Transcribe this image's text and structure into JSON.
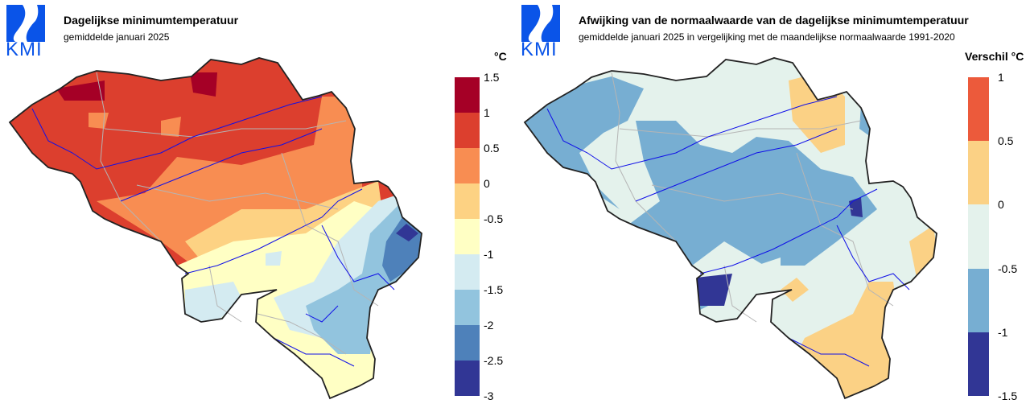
{
  "logo": {
    "text": "KMI",
    "color": "#0a54e8"
  },
  "left_panel": {
    "title": "Dagelijkse minimumtemperatuur",
    "subtitle": "gemiddelde januari 2025",
    "legend": {
      "unit": "°C",
      "breaks": [
        "1.5",
        "1",
        "0.5",
        "0",
        "-0.5",
        "-1",
        "-1.5",
        "-2",
        "-2.5",
        "-3"
      ],
      "colors": [
        "#a50026",
        "#dc3f2e",
        "#f88d52",
        "#fdd283",
        "#ffffc4",
        "#d4ebf1",
        "#92c4de",
        "#4e81ba",
        "#313695"
      ]
    }
  },
  "right_panel": {
    "title": "Afwijking van de normaalwaarde van de dagelijkse minimumtemperatuur",
    "subtitle": "gemiddelde januari 2025 in vergelijking met de maandelijkse normaalwaarde 1991-2020",
    "legend": {
      "unit": "Verschil °C",
      "breaks": [
        "1",
        "0.5",
        "0",
        "-0.5",
        "-1",
        "-1.5"
      ],
      "colors": [
        "#ec5a3b",
        "#fbd185",
        "#e4f2ec",
        "#77aed2",
        "#313695"
      ]
    }
  }
}
